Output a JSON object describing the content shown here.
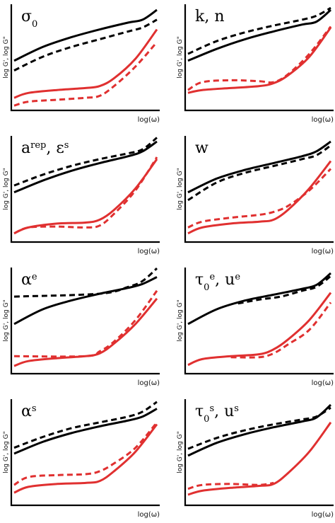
{
  "chart_data": [
    {
      "type": "line",
      "title": [
        "σ",
        {
          "sub": "0"
        }
      ],
      "xlabel": "log(ω)",
      "ylabel": "log G', log G\"",
      "xlim": [
        0,
        1
      ],
      "ylim": [
        0,
        1
      ],
      "grid": false,
      "series": [
        {
          "color": "#000000",
          "dash": false,
          "x": [
            0,
            0.2,
            0.4,
            0.6,
            0.8,
            0.9,
            1
          ],
          "y": [
            0.48,
            0.62,
            0.72,
            0.8,
            0.87,
            0.9,
            1.0
          ]
        },
        {
          "color": "#000000",
          "dash": true,
          "x": [
            0,
            0.2,
            0.4,
            0.6,
            0.8,
            0.9,
            1
          ],
          "y": [
            0.38,
            0.52,
            0.62,
            0.7,
            0.78,
            0.82,
            0.9
          ]
        },
        {
          "color": "#e03030",
          "dash": false,
          "x": [
            0,
            0.1,
            0.3,
            0.5,
            0.6,
            0.7,
            0.85,
            1
          ],
          "y": [
            0.1,
            0.15,
            0.18,
            0.2,
            0.22,
            0.3,
            0.5,
            0.8
          ]
        },
        {
          "color": "#e03030",
          "dash": true,
          "x": [
            0,
            0.1,
            0.3,
            0.5,
            0.6,
            0.7,
            0.85,
            1
          ],
          "y": [
            0.02,
            0.06,
            0.08,
            0.1,
            0.12,
            0.22,
            0.42,
            0.67
          ]
        }
      ]
    },
    {
      "type": "line",
      "title": [
        "k, n"
      ],
      "xlabel": "log(ω)",
      "ylabel": "log G', log G\"",
      "xlim": [
        0,
        1
      ],
      "ylim": [
        0,
        1
      ],
      "grid": false,
      "series": [
        {
          "color": "#000000",
          "dash": false,
          "x": [
            0,
            0.2,
            0.4,
            0.6,
            0.8,
            0.9,
            1
          ],
          "y": [
            0.48,
            0.6,
            0.7,
            0.78,
            0.85,
            0.88,
            1.0
          ]
        },
        {
          "color": "#000000",
          "dash": true,
          "x": [
            0,
            0.2,
            0.4,
            0.6,
            0.8,
            0.9,
            1
          ],
          "y": [
            0.55,
            0.68,
            0.77,
            0.84,
            0.9,
            0.94,
            1.02
          ]
        },
        {
          "color": "#e03030",
          "dash": false,
          "x": [
            0,
            0.1,
            0.3,
            0.5,
            0.6,
            0.7,
            0.85,
            1
          ],
          "y": [
            0.15,
            0.18,
            0.2,
            0.22,
            0.25,
            0.33,
            0.52,
            0.82
          ]
        },
        {
          "color": "#e03030",
          "dash": true,
          "x": [
            0,
            0.1,
            0.3,
            0.5,
            0.6,
            0.7,
            0.85,
            1
          ],
          "y": [
            0.18,
            0.26,
            0.28,
            0.27,
            0.26,
            0.34,
            0.55,
            0.83
          ]
        }
      ]
    },
    {
      "type": "line",
      "title": [
        "a",
        {
          "sup": "rep"
        },
        ", ε",
        {
          "sup": "s"
        }
      ],
      "xlabel": "log(ω)",
      "ylabel": "log G', log G\"",
      "xlim": [
        0,
        1
      ],
      "ylim": [
        0,
        1
      ],
      "grid": false,
      "series": [
        {
          "color": "#000000",
          "dash": false,
          "x": [
            0,
            0.2,
            0.4,
            0.6,
            0.8,
            0.9,
            1
          ],
          "y": [
            0.48,
            0.6,
            0.7,
            0.78,
            0.85,
            0.9,
            1.0
          ]
        },
        {
          "color": "#000000",
          "dash": true,
          "x": [
            0,
            0.2,
            0.4,
            0.6,
            0.8,
            0.9,
            1
          ],
          "y": [
            0.55,
            0.66,
            0.75,
            0.82,
            0.88,
            0.92,
            1.04
          ]
        },
        {
          "color": "#e03030",
          "dash": false,
          "x": [
            0,
            0.1,
            0.3,
            0.5,
            0.6,
            0.7,
            0.85,
            1
          ],
          "y": [
            0.06,
            0.12,
            0.16,
            0.17,
            0.2,
            0.3,
            0.52,
            0.82
          ]
        },
        {
          "color": "#e03030",
          "dash": true,
          "x": [
            0,
            0.1,
            0.3,
            0.5,
            0.6,
            0.7,
            0.85,
            1
          ],
          "y": [
            0.06,
            0.12,
            0.13,
            0.12,
            0.14,
            0.26,
            0.5,
            0.84
          ]
        }
      ]
    },
    {
      "type": "line",
      "title": [
        "w"
      ],
      "xlabel": "log(ω)",
      "ylabel": "log G', log G\"",
      "xlim": [
        0,
        1
      ],
      "ylim": [
        0,
        1
      ],
      "grid": false,
      "series": [
        {
          "color": "#000000",
          "dash": false,
          "x": [
            0,
            0.2,
            0.4,
            0.6,
            0.8,
            0.9,
            1
          ],
          "y": [
            0.48,
            0.62,
            0.71,
            0.78,
            0.85,
            0.9,
            1.0
          ]
        },
        {
          "color": "#000000",
          "dash": true,
          "x": [
            0,
            0.2,
            0.4,
            0.6,
            0.8,
            0.9,
            1
          ],
          "y": [
            0.4,
            0.58,
            0.68,
            0.75,
            0.82,
            0.86,
            0.96
          ]
        },
        {
          "color": "#e03030",
          "dash": false,
          "x": [
            0,
            0.1,
            0.3,
            0.5,
            0.6,
            0.7,
            0.85,
            1
          ],
          "y": [
            0.06,
            0.12,
            0.16,
            0.18,
            0.2,
            0.3,
            0.52,
            0.8
          ]
        },
        {
          "color": "#e03030",
          "dash": true,
          "x": [
            0,
            0.1,
            0.3,
            0.5,
            0.6,
            0.7,
            0.85,
            1
          ],
          "y": [
            0.12,
            0.18,
            0.22,
            0.25,
            0.28,
            0.34,
            0.5,
            0.72
          ]
        }
      ]
    },
    {
      "type": "line",
      "title": [
        "α",
        {
          "sup": "e"
        }
      ],
      "xlabel": "log(ω)",
      "ylabel": "log G', log G\"",
      "xlim": [
        0,
        1
      ],
      "ylim": [
        0,
        1
      ],
      "grid": false,
      "series": [
        {
          "color": "#000000",
          "dash": false,
          "x": [
            0,
            0.2,
            0.4,
            0.6,
            0.8,
            0.9,
            1
          ],
          "y": [
            0.48,
            0.63,
            0.72,
            0.79,
            0.85,
            0.89,
            0.96
          ]
        },
        {
          "color": "#000000",
          "dash": true,
          "x": [
            0,
            0.6,
            0.8,
            0.9,
            1
          ],
          "y": [
            0.76,
            0.79,
            0.86,
            0.92,
            1.05
          ]
        },
        {
          "color": "#e03030",
          "dash": false,
          "x": [
            0,
            0.1,
            0.3,
            0.5,
            0.6,
            0.7,
            0.85,
            1
          ],
          "y": [
            0.05,
            0.1,
            0.13,
            0.15,
            0.18,
            0.28,
            0.48,
            0.74
          ]
        },
        {
          "color": "#e03030",
          "dash": true,
          "x": [
            0,
            0.5,
            0.6,
            0.7,
            0.85,
            1
          ],
          "y": [
            0.15,
            0.15,
            0.2,
            0.3,
            0.52,
            0.82
          ]
        }
      ]
    },
    {
      "type": "line",
      "title": [
        "τ",
        {
          "sub": "0"
        },
        {
          "sup": "e"
        },
        ", u",
        {
          "sup": "e"
        }
      ],
      "xlabel": "log(ω)",
      "ylabel": "log G', log G\"",
      "xlim": [
        0,
        1
      ],
      "ylim": [
        0,
        1
      ],
      "grid": false,
      "series": [
        {
          "color": "#000000",
          "dash": false,
          "x": [
            0,
            0.2,
            0.4,
            0.6,
            0.8,
            0.9,
            1
          ],
          "y": [
            0.48,
            0.63,
            0.72,
            0.78,
            0.84,
            0.88,
            1.0
          ]
        },
        {
          "color": "#000000",
          "dash": true,
          "x": [
            0.35,
            0.5,
            0.65,
            0.8,
            0.9,
            1
          ],
          "y": [
            0.69,
            0.73,
            0.76,
            0.82,
            0.86,
            0.97
          ]
        },
        {
          "color": "#e03030",
          "dash": false,
          "x": [
            0,
            0.1,
            0.3,
            0.5,
            0.6,
            0.7,
            0.85,
            1
          ],
          "y": [
            0.06,
            0.12,
            0.15,
            0.17,
            0.22,
            0.32,
            0.52,
            0.8
          ]
        },
        {
          "color": "#e03030",
          "dash": true,
          "x": [
            0.3,
            0.5,
            0.6,
            0.7,
            0.85,
            1
          ],
          "y": [
            0.14,
            0.14,
            0.18,
            0.27,
            0.42,
            0.7
          ]
        }
      ]
    },
    {
      "type": "line",
      "title": [
        "α",
        {
          "sup": "s"
        }
      ],
      "xlabel": "log(ω)",
      "ylabel": "log G', log G\"",
      "xlim": [
        0,
        1
      ],
      "ylim": [
        0,
        1
      ],
      "grid": false,
      "series": [
        {
          "color": "#000000",
          "dash": false,
          "x": [
            0,
            0.2,
            0.4,
            0.6,
            0.8,
            0.9,
            1
          ],
          "y": [
            0.5,
            0.62,
            0.71,
            0.78,
            0.84,
            0.88,
            0.96
          ]
        },
        {
          "color": "#000000",
          "dash": true,
          "x": [
            0,
            0.2,
            0.4,
            0.6,
            0.8,
            0.9,
            1
          ],
          "y": [
            0.56,
            0.67,
            0.76,
            0.82,
            0.88,
            0.93,
            1.03
          ]
        },
        {
          "color": "#e03030",
          "dash": false,
          "x": [
            0,
            0.1,
            0.3,
            0.5,
            0.6,
            0.7,
            0.85,
            1
          ],
          "y": [
            0.1,
            0.16,
            0.19,
            0.2,
            0.22,
            0.32,
            0.52,
            0.8
          ]
        },
        {
          "color": "#e03030",
          "dash": true,
          "x": [
            0,
            0.1,
            0.3,
            0.5,
            0.6,
            0.7,
            0.85,
            1
          ],
          "y": [
            0.18,
            0.26,
            0.28,
            0.29,
            0.32,
            0.4,
            0.56,
            0.82
          ]
        }
      ]
    },
    {
      "type": "line",
      "title": [
        "τ",
        {
          "sub": "0"
        },
        {
          "sup": "s"
        },
        ", u",
        {
          "sup": "s"
        }
      ],
      "xlabel": "log(ω)",
      "ylabel": "log G', log G\"",
      "xlim": [
        0,
        1
      ],
      "ylim": [
        0,
        1
      ],
      "grid": false,
      "series": [
        {
          "color": "#000000",
          "dash": false,
          "x": [
            0,
            0.2,
            0.4,
            0.6,
            0.8,
            0.9,
            1
          ],
          "y": [
            0.48,
            0.61,
            0.7,
            0.77,
            0.83,
            0.87,
            1.0
          ]
        },
        {
          "color": "#000000",
          "dash": true,
          "x": [
            0,
            0.2,
            0.4,
            0.6,
            0.8,
            0.9,
            1
          ],
          "y": [
            0.55,
            0.66,
            0.74,
            0.8,
            0.85,
            0.88,
            0.97
          ]
        },
        {
          "color": "#e03030",
          "dash": false,
          "x": [
            0,
            0.1,
            0.3,
            0.5,
            0.6,
            0.7,
            0.85,
            1
          ],
          "y": [
            0.08,
            0.12,
            0.15,
            0.17,
            0.19,
            0.3,
            0.52,
            0.82
          ]
        },
        {
          "color": "#e03030",
          "dash": true,
          "x": [
            0,
            0.1,
            0.3,
            0.5,
            0.6
          ],
          "y": [
            0.14,
            0.18,
            0.19,
            0.18,
            0.2
          ]
        }
      ]
    }
  ]
}
